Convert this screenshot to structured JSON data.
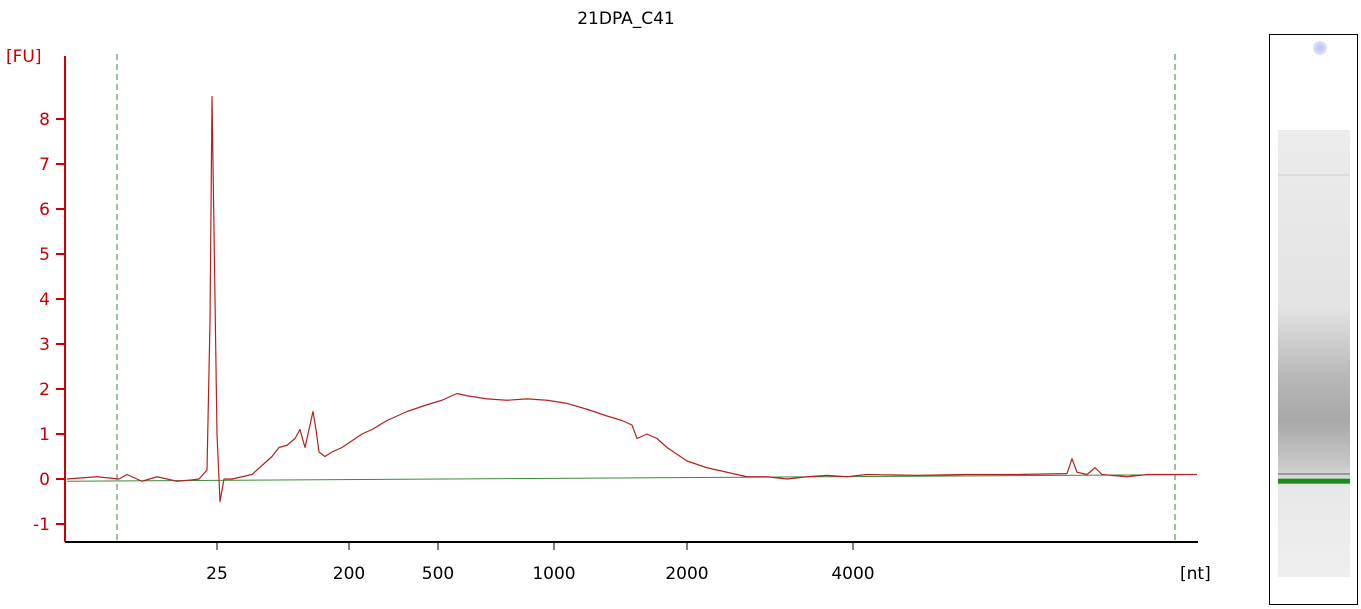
{
  "chart_data": {
    "type": "line",
    "title": "21DPA_C41",
    "xlabel": "[nt]",
    "ylabel": "[FU]",
    "ylim": [
      -1.4,
      9.4
    ],
    "yticks": [
      -1,
      0,
      1,
      2,
      3,
      4,
      5,
      6,
      7,
      8
    ],
    "x_tick_labels": [
      "25",
      "200",
      "500",
      "1000",
      "2000",
      "4000"
    ],
    "grid": false,
    "colors": {
      "axis": "#cc0000",
      "trace": "#b22222",
      "baseline": "#3a8a3a",
      "marker": "#3a8a3a",
      "gel_band": "#1a8a1a"
    },
    "series": [
      {
        "name": "",
        "points": [
          [
            0,
            0.0
          ],
          [
            30,
            0.05
          ],
          [
            52,
            0.0
          ],
          [
            60,
            0.1
          ],
          [
            75,
            -0.05
          ],
          [
            90,
            0.05
          ],
          [
            110,
            -0.05
          ],
          [
            125,
            -0.02
          ],
          [
            132,
            0.0
          ],
          [
            140,
            0.2
          ],
          [
            143,
            3.5
          ],
          [
            145,
            8.5
          ],
          [
            147,
            5.5
          ],
          [
            150,
            1.0
          ],
          [
            153,
            -0.5
          ],
          [
            157,
            0.0
          ],
          [
            165,
            0.0
          ],
          [
            175,
            0.05
          ],
          [
            185,
            0.1
          ],
          [
            195,
            0.3
          ],
          [
            200,
            0.4
          ],
          [
            205,
            0.5
          ],
          [
            212,
            0.7
          ],
          [
            220,
            0.75
          ],
          [
            228,
            0.9
          ],
          [
            233,
            1.1
          ],
          [
            238,
            0.7
          ],
          [
            243,
            1.2
          ],
          [
            246,
            1.5
          ],
          [
            249,
            1.1
          ],
          [
            252,
            0.6
          ],
          [
            258,
            0.5
          ],
          [
            265,
            0.6
          ],
          [
            275,
            0.7
          ],
          [
            285,
            0.85
          ],
          [
            295,
            1.0
          ],
          [
            305,
            1.1
          ],
          [
            320,
            1.3
          ],
          [
            340,
            1.5
          ],
          [
            360,
            1.65
          ],
          [
            375,
            1.75
          ],
          [
            390,
            1.9
          ],
          [
            400,
            1.85
          ],
          [
            420,
            1.78
          ],
          [
            440,
            1.75
          ],
          [
            460,
            1.78
          ],
          [
            480,
            1.75
          ],
          [
            500,
            1.68
          ],
          [
            520,
            1.55
          ],
          [
            540,
            1.4
          ],
          [
            555,
            1.3
          ],
          [
            565,
            1.2
          ],
          [
            570,
            0.9
          ],
          [
            580,
            1.0
          ],
          [
            590,
            0.9
          ],
          [
            600,
            0.7
          ],
          [
            620,
            0.4
          ],
          [
            640,
            0.25
          ],
          [
            660,
            0.15
          ],
          [
            680,
            0.05
          ],
          [
            700,
            0.05
          ],
          [
            720,
            0.0
          ],
          [
            740,
            0.05
          ],
          [
            760,
            0.08
          ],
          [
            780,
            0.05
          ],
          [
            800,
            0.1
          ],
          [
            850,
            0.08
          ],
          [
            900,
            0.1
          ],
          [
            950,
            0.1
          ],
          [
            1000,
            0.12
          ],
          [
            1005,
            0.45
          ],
          [
            1010,
            0.15
          ],
          [
            1020,
            0.1
          ],
          [
            1028,
            0.25
          ],
          [
            1035,
            0.1
          ],
          [
            1060,
            0.05
          ],
          [
            1080,
            0.1
          ],
          [
            1100,
            0.1
          ],
          [
            1130,
            0.1
          ]
        ]
      },
      {
        "name": "",
        "points": [
          [
            0,
            -0.05
          ],
          [
            1130,
            0.1
          ]
        ]
      }
    ]
  },
  "gel": {
    "band_position": 0.78
  }
}
